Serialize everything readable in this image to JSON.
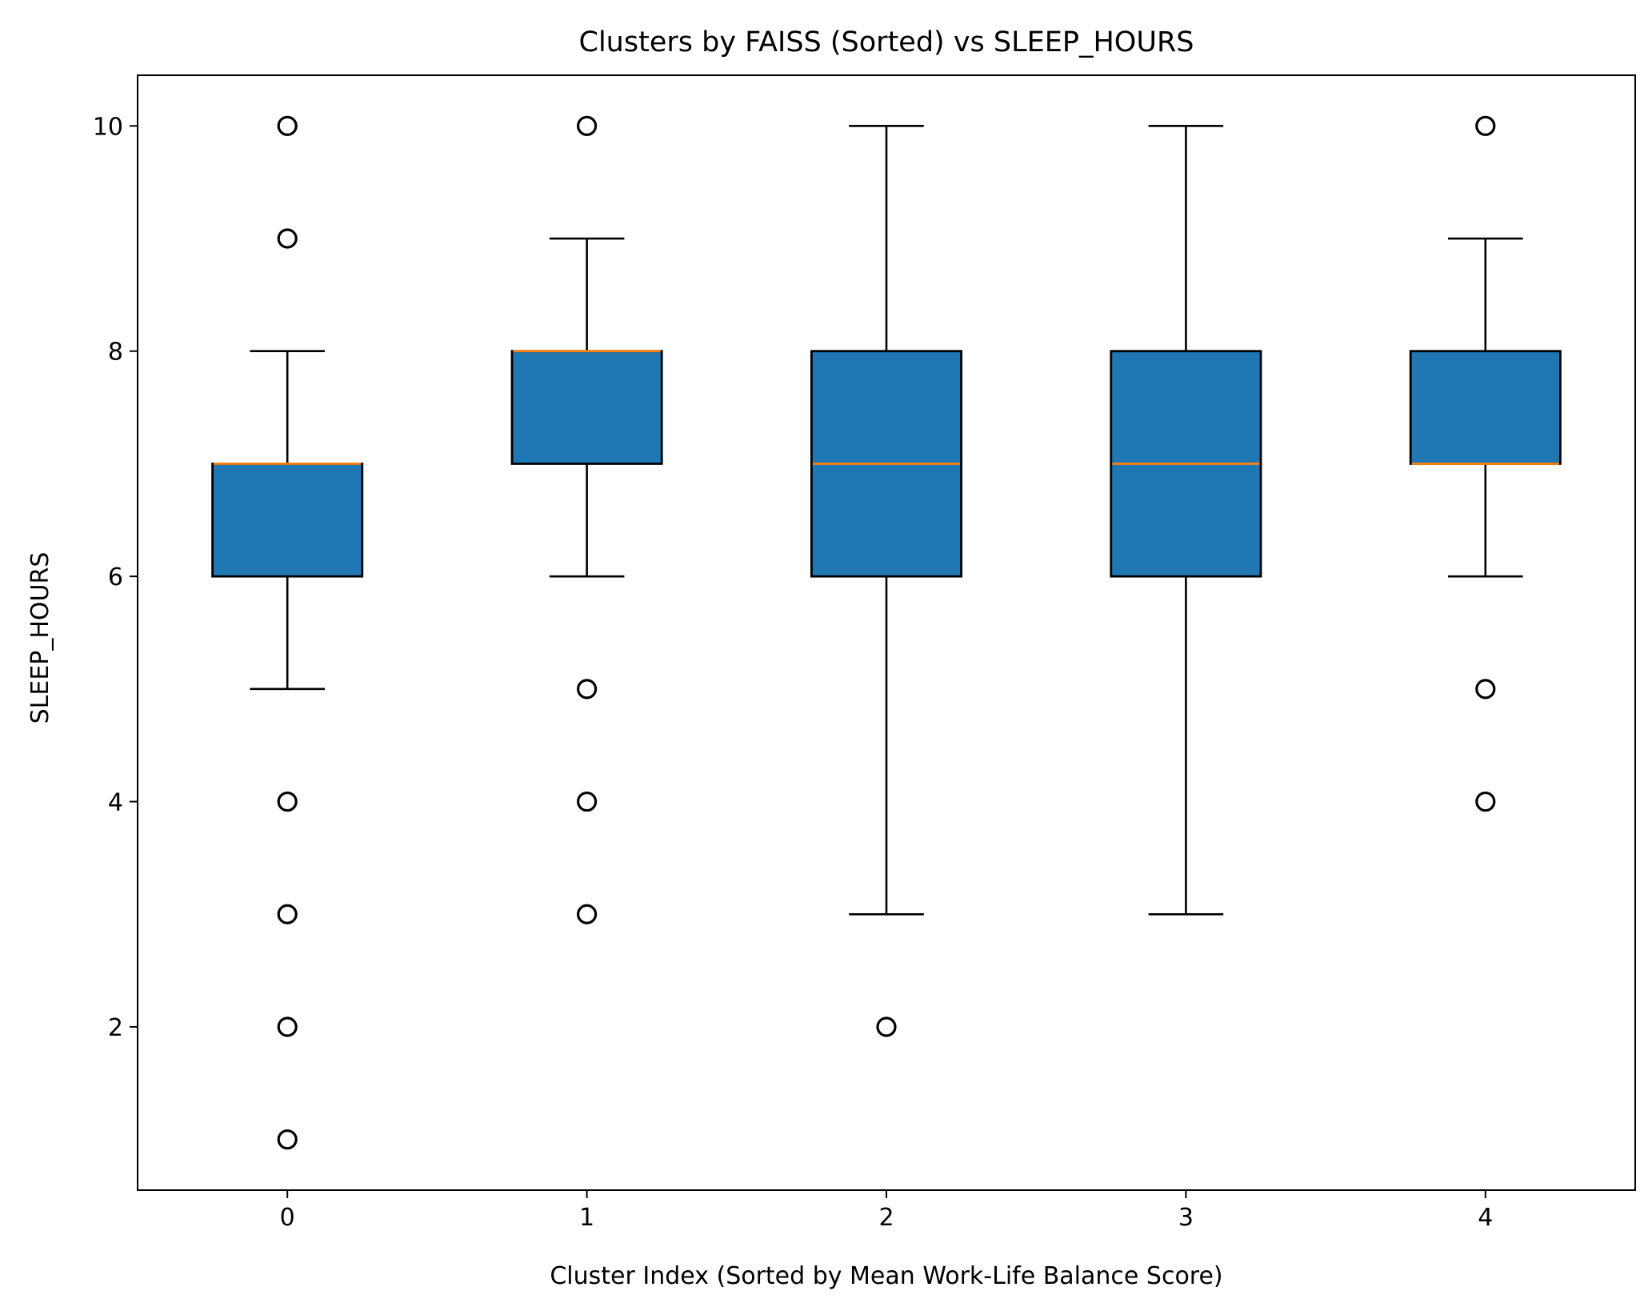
{
  "chart_data": {
    "type": "box",
    "title": "Clusters by FAISS (Sorted) vs SLEEP_HOURS",
    "xlabel": "Cluster Index (Sorted by Mean Work-Life Balance Score)",
    "ylabel": "SLEEP_HOURS",
    "xlim": [
      -0.5,
      4.5
    ],
    "ylim": [
      0.55,
      10.45
    ],
    "categories": [
      "0",
      "1",
      "2",
      "3",
      "4"
    ],
    "yticks": [
      "2",
      "4",
      "6",
      "8",
      "10"
    ],
    "grid": false,
    "colors": {
      "box_fill": "#1f77b4",
      "median": "#ff7f0e",
      "line": "#000000"
    },
    "boxes": [
      {
        "category": "0",
        "whisker_low": 5,
        "q1": 6,
        "median": 7,
        "q3": 7,
        "whisker_high": 8,
        "outliers": [
          1,
          2,
          3,
          4,
          9,
          10
        ]
      },
      {
        "category": "1",
        "whisker_low": 6,
        "q1": 7,
        "median": 8,
        "q3": 8,
        "whisker_high": 9,
        "outliers": [
          3,
          4,
          5,
          10
        ]
      },
      {
        "category": "2",
        "whisker_low": 3,
        "q1": 6,
        "median": 7,
        "q3": 8,
        "whisker_high": 10,
        "outliers": [
          2
        ]
      },
      {
        "category": "3",
        "whisker_low": 3,
        "q1": 6,
        "median": 7,
        "q3": 8,
        "whisker_high": 10,
        "outliers": []
      },
      {
        "category": "4",
        "whisker_low": 6,
        "q1": 7,
        "median": 7,
        "q3": 8,
        "whisker_high": 9,
        "outliers": [
          4,
          5,
          10
        ]
      }
    ]
  }
}
